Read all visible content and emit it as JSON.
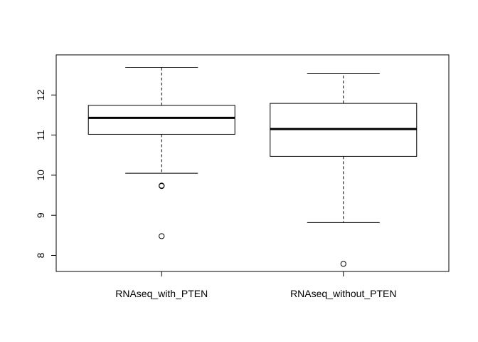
{
  "chart_data": {
    "type": "boxplot",
    "title": "",
    "xlabel": "",
    "ylabel": "",
    "ylim": [
      7.6,
      13.0
    ],
    "y_ticks": [
      8,
      9,
      10,
      11,
      12
    ],
    "categories": [
      "RNAseq_with_PTEN",
      "RNAseq_without_PTEN"
    ],
    "boxes": [
      {
        "category": "RNAseq_with_PTEN",
        "whisker_low": 10.05,
        "q1": 11.02,
        "median": 11.43,
        "q3": 11.74,
        "whisker_high": 12.69,
        "outliers": [
          9.74,
          9.73,
          8.48
        ]
      },
      {
        "category": "RNAseq_without_PTEN",
        "whisker_low": 8.82,
        "q1": 10.47,
        "median": 11.15,
        "q3": 11.79,
        "whisker_high": 12.53,
        "outliers": [
          7.79
        ]
      }
    ],
    "grid": false,
    "legend": "none"
  }
}
